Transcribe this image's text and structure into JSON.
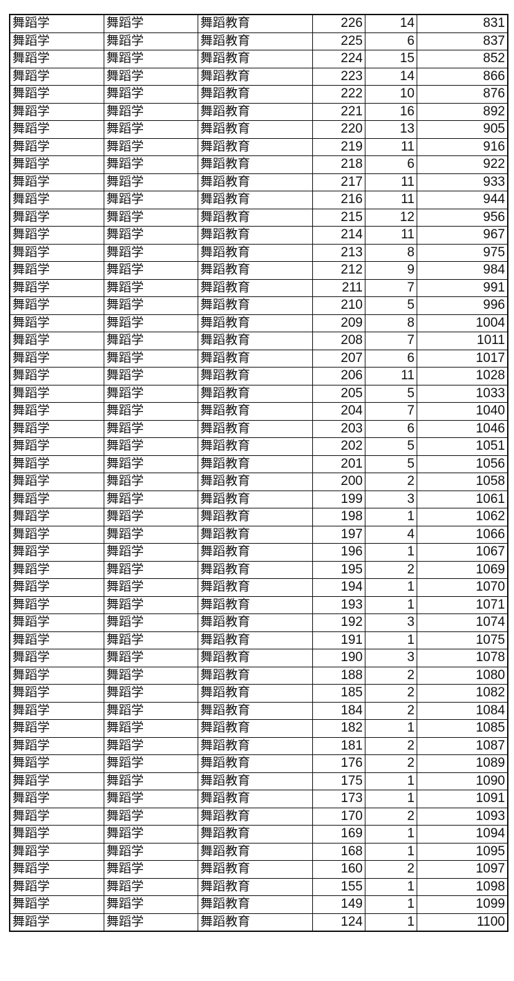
{
  "table": {
    "rows": [
      [
        "舞蹈学",
        "舞蹈学",
        "舞蹈教育",
        "226",
        "14",
        "831"
      ],
      [
        "舞蹈学",
        "舞蹈学",
        "舞蹈教育",
        "225",
        "6",
        "837"
      ],
      [
        "舞蹈学",
        "舞蹈学",
        "舞蹈教育",
        "224",
        "15",
        "852"
      ],
      [
        "舞蹈学",
        "舞蹈学",
        "舞蹈教育",
        "223",
        "14",
        "866"
      ],
      [
        "舞蹈学",
        "舞蹈学",
        "舞蹈教育",
        "222",
        "10",
        "876"
      ],
      [
        "舞蹈学",
        "舞蹈学",
        "舞蹈教育",
        "221",
        "16",
        "892"
      ],
      [
        "舞蹈学",
        "舞蹈学",
        "舞蹈教育",
        "220",
        "13",
        "905"
      ],
      [
        "舞蹈学",
        "舞蹈学",
        "舞蹈教育",
        "219",
        "11",
        "916"
      ],
      [
        "舞蹈学",
        "舞蹈学",
        "舞蹈教育",
        "218",
        "6",
        "922"
      ],
      [
        "舞蹈学",
        "舞蹈学",
        "舞蹈教育",
        "217",
        "11",
        "933"
      ],
      [
        "舞蹈学",
        "舞蹈学",
        "舞蹈教育",
        "216",
        "11",
        "944"
      ],
      [
        "舞蹈学",
        "舞蹈学",
        "舞蹈教育",
        "215",
        "12",
        "956"
      ],
      [
        "舞蹈学",
        "舞蹈学",
        "舞蹈教育",
        "214",
        "11",
        "967"
      ],
      [
        "舞蹈学",
        "舞蹈学",
        "舞蹈教育",
        "213",
        "8",
        "975"
      ],
      [
        "舞蹈学",
        "舞蹈学",
        "舞蹈教育",
        "212",
        "9",
        "984"
      ],
      [
        "舞蹈学",
        "舞蹈学",
        "舞蹈教育",
        "211",
        "7",
        "991"
      ],
      [
        "舞蹈学",
        "舞蹈学",
        "舞蹈教育",
        "210",
        "5",
        "996"
      ],
      [
        "舞蹈学",
        "舞蹈学",
        "舞蹈教育",
        "209",
        "8",
        "1004"
      ],
      [
        "舞蹈学",
        "舞蹈学",
        "舞蹈教育",
        "208",
        "7",
        "1011"
      ],
      [
        "舞蹈学",
        "舞蹈学",
        "舞蹈教育",
        "207",
        "6",
        "1017"
      ],
      [
        "舞蹈学",
        "舞蹈学",
        "舞蹈教育",
        "206",
        "11",
        "1028"
      ],
      [
        "舞蹈学",
        "舞蹈学",
        "舞蹈教育",
        "205",
        "5",
        "1033"
      ],
      [
        "舞蹈学",
        "舞蹈学",
        "舞蹈教育",
        "204",
        "7",
        "1040"
      ],
      [
        "舞蹈学",
        "舞蹈学",
        "舞蹈教育",
        "203",
        "6",
        "1046"
      ],
      [
        "舞蹈学",
        "舞蹈学",
        "舞蹈教育",
        "202",
        "5",
        "1051"
      ],
      [
        "舞蹈学",
        "舞蹈学",
        "舞蹈教育",
        "201",
        "5",
        "1056"
      ],
      [
        "舞蹈学",
        "舞蹈学",
        "舞蹈教育",
        "200",
        "2",
        "1058"
      ],
      [
        "舞蹈学",
        "舞蹈学",
        "舞蹈教育",
        "199",
        "3",
        "1061"
      ],
      [
        "舞蹈学",
        "舞蹈学",
        "舞蹈教育",
        "198",
        "1",
        "1062"
      ],
      [
        "舞蹈学",
        "舞蹈学",
        "舞蹈教育",
        "197",
        "4",
        "1066"
      ],
      [
        "舞蹈学",
        "舞蹈学",
        "舞蹈教育",
        "196",
        "1",
        "1067"
      ],
      [
        "舞蹈学",
        "舞蹈学",
        "舞蹈教育",
        "195",
        "2",
        "1069"
      ],
      [
        "舞蹈学",
        "舞蹈学",
        "舞蹈教育",
        "194",
        "1",
        "1070"
      ],
      [
        "舞蹈学",
        "舞蹈学",
        "舞蹈教育",
        "193",
        "1",
        "1071"
      ],
      [
        "舞蹈学",
        "舞蹈学",
        "舞蹈教育",
        "192",
        "3",
        "1074"
      ],
      [
        "舞蹈学",
        "舞蹈学",
        "舞蹈教育",
        "191",
        "1",
        "1075"
      ],
      [
        "舞蹈学",
        "舞蹈学",
        "舞蹈教育",
        "190",
        "3",
        "1078"
      ],
      [
        "舞蹈学",
        "舞蹈学",
        "舞蹈教育",
        "188",
        "2",
        "1080"
      ],
      [
        "舞蹈学",
        "舞蹈学",
        "舞蹈教育",
        "185",
        "2",
        "1082"
      ],
      [
        "舞蹈学",
        "舞蹈学",
        "舞蹈教育",
        "184",
        "2",
        "1084"
      ],
      [
        "舞蹈学",
        "舞蹈学",
        "舞蹈教育",
        "182",
        "1",
        "1085"
      ],
      [
        "舞蹈学",
        "舞蹈学",
        "舞蹈教育",
        "181",
        "2",
        "1087"
      ],
      [
        "舞蹈学",
        "舞蹈学",
        "舞蹈教育",
        "176",
        "2",
        "1089"
      ],
      [
        "舞蹈学",
        "舞蹈学",
        "舞蹈教育",
        "175",
        "1",
        "1090"
      ],
      [
        "舞蹈学",
        "舞蹈学",
        "舞蹈教育",
        "173",
        "1",
        "1091"
      ],
      [
        "舞蹈学",
        "舞蹈学",
        "舞蹈教育",
        "170",
        "2",
        "1093"
      ],
      [
        "舞蹈学",
        "舞蹈学",
        "舞蹈教育",
        "169",
        "1",
        "1094"
      ],
      [
        "舞蹈学",
        "舞蹈学",
        "舞蹈教育",
        "168",
        "1",
        "1095"
      ],
      [
        "舞蹈学",
        "舞蹈学",
        "舞蹈教育",
        "160",
        "2",
        "1097"
      ],
      [
        "舞蹈学",
        "舞蹈学",
        "舞蹈教育",
        "155",
        "1",
        "1098"
      ],
      [
        "舞蹈学",
        "舞蹈学",
        "舞蹈教育",
        "149",
        "1",
        "1099"
      ],
      [
        "舞蹈学",
        "舞蹈学",
        "舞蹈教育",
        "124",
        "1",
        "1100"
      ]
    ]
  }
}
